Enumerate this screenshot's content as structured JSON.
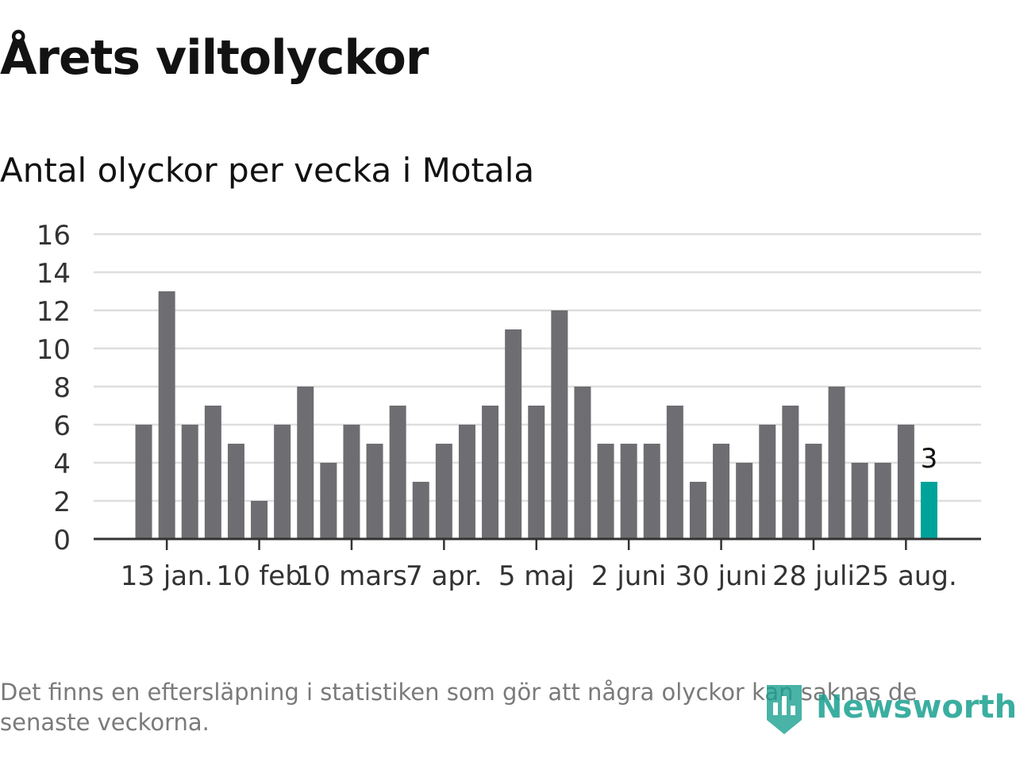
{
  "title": "Årets viltolyckor",
  "subtitle": "Antal olyckor per vecka i Motala",
  "footnote": "Det finns en eftersläpning i statistiken som gör att några olyckor kan saknas de senaste veckorna.",
  "logo_text": "Newsworthy",
  "colors": {
    "bar": "#6d6d72",
    "highlight": "#00a39a",
    "grid": "#dedede",
    "axis": "#333333"
  },
  "chart_data": {
    "type": "bar",
    "title": "Årets viltolyckor",
    "subtitle": "Antal olyckor per vecka i Motala",
    "xlabel": "",
    "ylabel": "",
    "ylim": [
      0,
      16
    ],
    "yticks": [
      0,
      2,
      4,
      6,
      8,
      10,
      12,
      14,
      16
    ],
    "grid": true,
    "values": [
      6,
      13,
      6,
      7,
      5,
      2,
      6,
      8,
      4,
      6,
      5,
      7,
      3,
      5,
      6,
      7,
      11,
      7,
      12,
      8,
      5,
      5,
      5,
      7,
      3,
      5,
      4,
      6,
      7,
      5,
      8,
      4,
      4,
      6,
      3
    ],
    "xticks": [
      {
        "index": 1.5,
        "label": "13 jan."
      },
      {
        "index": 5.5,
        "label": "10 feb"
      },
      {
        "index": 9.5,
        "label": "10 mars"
      },
      {
        "index": 13.5,
        "label": "7 apr."
      },
      {
        "index": 17.5,
        "label": "5 maj"
      },
      {
        "index": 21.5,
        "label": "2 juni"
      },
      {
        "index": 25.5,
        "label": "30 juni"
      },
      {
        "index": 29.5,
        "label": "28 juli"
      },
      {
        "index": 33.5,
        "label": "25 aug."
      }
    ],
    "highlight_index": 34,
    "highlight_label": "3"
  }
}
